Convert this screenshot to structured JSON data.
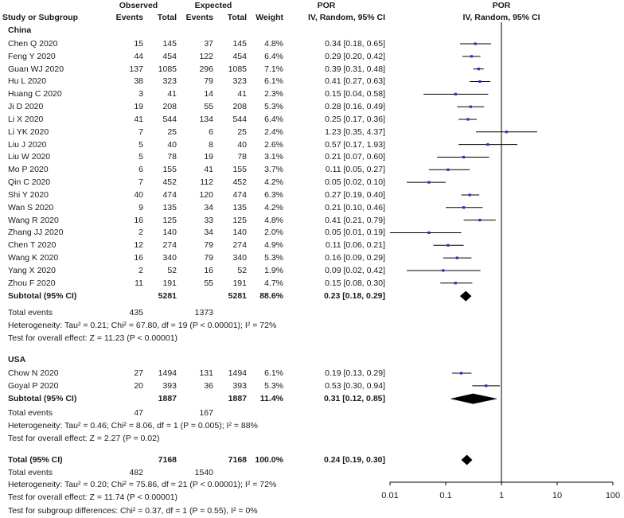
{
  "header": {
    "observed": "Observed",
    "expected": "Expected",
    "por": "POR",
    "por_right": "POR",
    "study": "Study or Subgroup",
    "events_obs": "Events",
    "total_obs": "Total",
    "events_exp": "Events",
    "total_exp": "Total",
    "weight": "Weight",
    "method": "IV, Random, 95% CI",
    "method_right": "IV, Random, 95% CI"
  },
  "groups": [
    {
      "name": "China",
      "studies": [
        {
          "study": "Chen Q 2020",
          "obs_events": "15",
          "obs_total": "145",
          "exp_events": "37",
          "exp_total": "145",
          "weight": "4.8%",
          "ci_text": "0.34 [0.18, 0.65]",
          "por": 0.34,
          "lo": 0.18,
          "hi": 0.65
        },
        {
          "study": "Feng Y 2020",
          "obs_events": "44",
          "obs_total": "454",
          "exp_events": "122",
          "exp_total": "454",
          "weight": "6.4%",
          "ci_text": "0.29 [0.20, 0.42]",
          "por": 0.29,
          "lo": 0.2,
          "hi": 0.42
        },
        {
          "study": "Guan WJ 2020",
          "obs_events": "137",
          "obs_total": "1085",
          "exp_events": "296",
          "exp_total": "1085",
          "weight": "7.1%",
          "ci_text": "0.39 [0.31, 0.48]",
          "por": 0.39,
          "lo": 0.31,
          "hi": 0.48
        },
        {
          "study": "Hu L 2020",
          "obs_events": "38",
          "obs_total": "323",
          "exp_events": "79",
          "exp_total": "323",
          "weight": "6.1%",
          "ci_text": "0.41 [0.27, 0.63]",
          "por": 0.41,
          "lo": 0.27,
          "hi": 0.63
        },
        {
          "study": "Huang C 2020",
          "obs_events": "3",
          "obs_total": "41",
          "exp_events": "14",
          "exp_total": "41",
          "weight": "2.3%",
          "ci_text": "0.15 [0.04, 0.58]",
          "por": 0.15,
          "lo": 0.04,
          "hi": 0.58
        },
        {
          "study": "Ji D 2020",
          "obs_events": "19",
          "obs_total": "208",
          "exp_events": "55",
          "exp_total": "208",
          "weight": "5.3%",
          "ci_text": "0.28 [0.16, 0.49]",
          "por": 0.28,
          "lo": 0.16,
          "hi": 0.49
        },
        {
          "study": "Li X 2020",
          "obs_events": "41",
          "obs_total": "544",
          "exp_events": "134",
          "exp_total": "544",
          "weight": "6.4%",
          "ci_text": "0.25 [0.17, 0.36]",
          "por": 0.25,
          "lo": 0.17,
          "hi": 0.36
        },
        {
          "study": "Li YK 2020",
          "obs_events": "7",
          "obs_total": "25",
          "exp_events": "6",
          "exp_total": "25",
          "weight": "2.4%",
          "ci_text": "1.23 [0.35, 4.37]",
          "por": 1.23,
          "lo": 0.35,
          "hi": 4.37
        },
        {
          "study": "Liu J 2020",
          "obs_events": "5",
          "obs_total": "40",
          "exp_events": "8",
          "exp_total": "40",
          "weight": "2.6%",
          "ci_text": "0.57 [0.17, 1.93]",
          "por": 0.57,
          "lo": 0.17,
          "hi": 1.93
        },
        {
          "study": "Liu W 2020",
          "obs_events": "5",
          "obs_total": "78",
          "exp_events": "19",
          "exp_total": "78",
          "weight": "3.1%",
          "ci_text": "0.21 [0.07, 0.60]",
          "por": 0.21,
          "lo": 0.07,
          "hi": 0.6
        },
        {
          "study": "Mo P 2020",
          "obs_events": "6",
          "obs_total": "155",
          "exp_events": "41",
          "exp_total": "155",
          "weight": "3.7%",
          "ci_text": "0.11 [0.05, 0.27]",
          "por": 0.11,
          "lo": 0.05,
          "hi": 0.27
        },
        {
          "study": "Qin C 2020",
          "obs_events": "7",
          "obs_total": "452",
          "exp_events": "112",
          "exp_total": "452",
          "weight": "4.2%",
          "ci_text": "0.05 [0.02, 0.10]",
          "por": 0.05,
          "lo": 0.02,
          "hi": 0.1
        },
        {
          "study": "Shi Y 2020",
          "obs_events": "40",
          "obs_total": "474",
          "exp_events": "120",
          "exp_total": "474",
          "weight": "6.3%",
          "ci_text": "0.27 [0.19, 0.40]",
          "por": 0.27,
          "lo": 0.19,
          "hi": 0.4
        },
        {
          "study": "Wan S 2020",
          "obs_events": "9",
          "obs_total": "135",
          "exp_events": "34",
          "exp_total": "135",
          "weight": "4.2%",
          "ci_text": "0.21 [0.10, 0.46]",
          "por": 0.21,
          "lo": 0.1,
          "hi": 0.46
        },
        {
          "study": "Wang R 2020",
          "obs_events": "16",
          "obs_total": "125",
          "exp_events": "33",
          "exp_total": "125",
          "weight": "4.8%",
          "ci_text": "0.41 [0.21, 0.79]",
          "por": 0.41,
          "lo": 0.21,
          "hi": 0.79
        },
        {
          "study": "Zhang JJ 2020",
          "obs_events": "2",
          "obs_total": "140",
          "exp_events": "34",
          "exp_total": "140",
          "weight": "2.0%",
          "ci_text": "0.05 [0.01, 0.19]",
          "por": 0.05,
          "lo": 0.01,
          "hi": 0.19
        },
        {
          "study": "Chen T 2020",
          "obs_events": "12",
          "obs_total": "274",
          "exp_events": "79",
          "exp_total": "274",
          "weight": "4.9%",
          "ci_text": "0.11 [0.06, 0.21]",
          "por": 0.11,
          "lo": 0.06,
          "hi": 0.21
        },
        {
          "study": "Wang K 2020",
          "obs_events": "16",
          "obs_total": "340",
          "exp_events": "79",
          "exp_total": "340",
          "weight": "5.3%",
          "ci_text": "0.16 [0.09, 0.29]",
          "por": 0.16,
          "lo": 0.09,
          "hi": 0.29
        },
        {
          "study": "Yang X 2020",
          "obs_events": "2",
          "obs_total": "52",
          "exp_events": "16",
          "exp_total": "52",
          "weight": "1.9%",
          "ci_text": "0.09 [0.02, 0.42]",
          "por": 0.09,
          "lo": 0.02,
          "hi": 0.42
        },
        {
          "study": "Zhou F 2020",
          "obs_events": "11",
          "obs_total": "191",
          "exp_events": "55",
          "exp_total": "191",
          "weight": "4.7%",
          "ci_text": "0.15 [0.08, 0.30]",
          "por": 0.15,
          "lo": 0.08,
          "hi": 0.3
        }
      ],
      "subtotal": {
        "label": "Subtotal (95% CI)",
        "obs_total": "5281",
        "exp_total": "5281",
        "weight": "88.6%",
        "ci_text": "0.23 [0.18, 0.29]",
        "por": 0.23,
        "lo": 0.18,
        "hi": 0.29
      },
      "total_events": {
        "label": "Total events",
        "obs": "435",
        "exp": "1373"
      },
      "heterogeneity": "Heterogeneity: Tau² = 0.21; Chi² = 67.80, df = 19 (P < 0.00001); I² = 72%",
      "overall": "Test for overall effect: Z = 11.23 (P < 0.00001)"
    },
    {
      "name": "USA",
      "studies": [
        {
          "study": "Chow N 2020",
          "obs_events": "27",
          "obs_total": "1494",
          "exp_events": "131",
          "exp_total": "1494",
          "weight": "6.1%",
          "ci_text": "0.19 [0.13, 0.29]",
          "por": 0.19,
          "lo": 0.13,
          "hi": 0.29
        },
        {
          "study": "Goyal P 2020",
          "obs_events": "20",
          "obs_total": "393",
          "exp_events": "36",
          "exp_total": "393",
          "weight": "5.3%",
          "ci_text": "0.53 [0.30, 0.94]",
          "por": 0.53,
          "lo": 0.3,
          "hi": 0.94
        }
      ],
      "subtotal": {
        "label": "Subtotal (95% CI)",
        "obs_total": "1887",
        "exp_total": "1887",
        "weight": "11.4%",
        "ci_text": "0.31 [0.12, 0.85]",
        "por": 0.31,
        "lo": 0.12,
        "hi": 0.85
      },
      "total_events": {
        "label": "Total events",
        "obs": "47",
        "exp": "167"
      },
      "heterogeneity": "Heterogeneity: Tau² = 0.46; Chi² = 8.06, df = 1 (P = 0.005); I² = 88%",
      "overall": "Test for overall effect: Z = 2.27 (P = 0.02)"
    }
  ],
  "total": {
    "label": "Total (95% CI)",
    "obs_total": "7168",
    "exp_total": "7168",
    "weight": "100.0%",
    "ci_text": "0.24 [0.19, 0.30]",
    "por": 0.24,
    "lo": 0.19,
    "hi": 0.3,
    "events_label": "Total events",
    "obs_events": "482",
    "exp_events": "1540",
    "heterogeneity": "Heterogeneity: Tau² = 0.20; Chi² = 75.86, df = 21 (P < 0.00001); I² = 72%",
    "overall": "Test for overall effect: Z = 11.74 (P < 0.00001)",
    "subgroup": "Test for subgroup differences: Chi² = 0.37, df = 1 (P = 0.55), I² = 0%"
  },
  "chart_data": {
    "type": "forest",
    "title": "POR",
    "xlabel": "IV, Random, 95% CI",
    "scale": "log",
    "xlim": [
      0.01,
      100
    ],
    "ticks": [
      0.01,
      0.1,
      1,
      10,
      100
    ],
    "tick_labels": [
      "0.01",
      "0.1",
      "1",
      "10",
      "100"
    ],
    "null_line": 1
  },
  "colors": {
    "marker": "#2b2bd6",
    "text": "#1a1a1a",
    "diamond": "#000000"
  }
}
